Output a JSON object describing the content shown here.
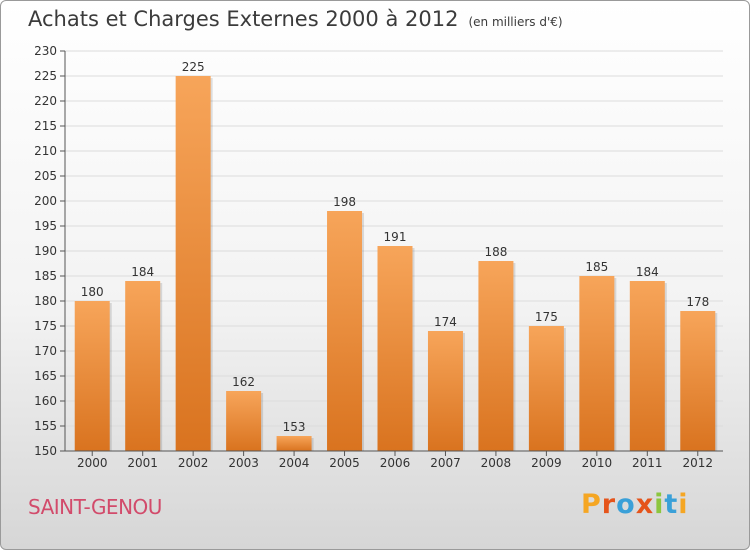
{
  "chart_data": {
    "type": "bar",
    "title": "Achats et Charges Externes 2000 à 2012",
    "subtitle": "(en milliers d'€)",
    "categories": [
      "2000",
      "2001",
      "2002",
      "2003",
      "2004",
      "2005",
      "2006",
      "2007",
      "2008",
      "2009",
      "2010",
      "2011",
      "2012"
    ],
    "values": [
      180,
      184,
      225,
      162,
      153,
      198,
      191,
      174,
      188,
      175,
      185,
      184,
      178
    ],
    "ylim": [
      150,
      230
    ],
    "yticks": [
      150,
      155,
      160,
      165,
      170,
      175,
      180,
      185,
      190,
      195,
      200,
      205,
      210,
      215,
      220,
      225,
      230
    ],
    "grid": true,
    "bar_color_top": "#f7a55a",
    "bar_color_bottom": "#d9731f"
  },
  "footer": {
    "commune": "SAINT-GENOU",
    "brand": {
      "letters": [
        "P",
        "r",
        "o",
        "x",
        "i",
        "t",
        "i"
      ],
      "colors": [
        "#f5a623",
        "#e5541b",
        "#3aa0d8",
        "#e5541b",
        "#8cc63f",
        "#3aa0d8",
        "#f5a623"
      ]
    }
  }
}
